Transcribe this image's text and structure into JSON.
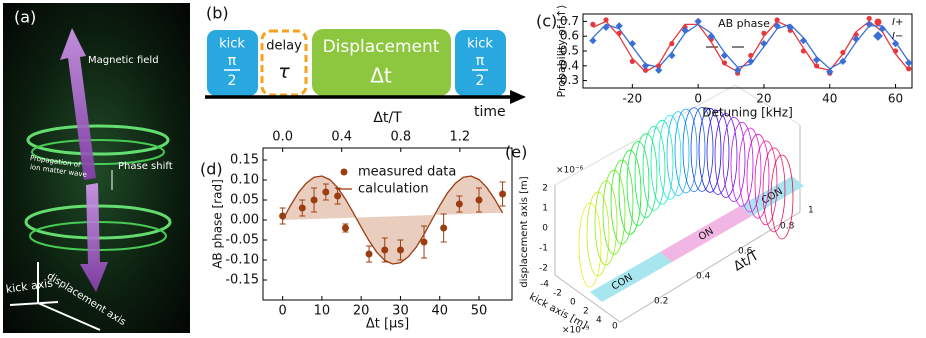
{
  "figure": {
    "panel_a": {
      "label": "(a)",
      "magnetic": "Magnetic field",
      "propagation_1": "Propagation of",
      "propagation_2": "ion matter wave",
      "phase_shift": "Phase shift",
      "kick_axis": "kick axis",
      "displacement_axis": "displacement axis"
    },
    "panel_b": {
      "label": "(b)",
      "blocks": [
        {
          "top": "kick",
          "num": "π",
          "den": "2"
        },
        {
          "top": "delay",
          "symbol": "τ"
        },
        {
          "top": "Displacement",
          "symbol": "Δt"
        },
        {
          "top": "kick",
          "num": "π",
          "den": "2"
        }
      ],
      "axis": "time"
    },
    "panel_e": {
      "label": "(e)",
      "z_label": "displacement axis [m]",
      "z_exp": "×10⁻⁶",
      "z_ticks": [
        "2",
        "1",
        "0",
        "-1",
        "-2"
      ],
      "x_label": "kick axis [m]",
      "x_exp": "×10⁻⁹",
      "x_ticks": [
        "-4",
        "-2",
        "0",
        "2",
        "4"
      ],
      "y_label": "Δt/T",
      "y_ticks": [
        "0",
        "0.2",
        "0.4",
        "0.6",
        "0.8",
        "1"
      ],
      "zones": [
        "CON",
        "ON",
        "CON"
      ]
    }
  },
  "chart_data": [
    {
      "type": "scatter",
      "title": "(c)",
      "xlabel": "Detuning [kHz]",
      "ylabel": "Probability of |↑⟩",
      "annotation": "AB phase",
      "xlim": [
        -35,
        65
      ],
      "xticks": [
        -20,
        0,
        20,
        40,
        60
      ],
      "ylim": [
        0.25,
        0.75
      ],
      "yticks": [
        0.3,
        0.4,
        0.5,
        0.6,
        0.7
      ],
      "x": [
        -32,
        -28,
        -24,
        -20,
        -16,
        -12,
        -8,
        -4,
        0,
        4,
        8,
        12,
        16,
        20,
        24,
        28,
        32,
        36,
        40,
        44,
        48,
        52,
        56,
        60,
        64
      ],
      "series": [
        {
          "name": "I+",
          "color": "#e8383d",
          "marker": "circle",
          "values": [
            0.68,
            0.71,
            0.62,
            0.43,
            0.37,
            0.4,
            0.55,
            0.66,
            0.7,
            0.58,
            0.42,
            0.35,
            0.47,
            0.62,
            0.71,
            0.64,
            0.5,
            0.4,
            0.35,
            0.49,
            0.61,
            0.72,
            0.65,
            0.5,
            0.38
          ]
        },
        {
          "name": "I−",
          "color": "#3a6fd8",
          "marker": "diamond",
          "values": [
            0.57,
            0.66,
            0.67,
            0.55,
            0.4,
            0.37,
            0.47,
            0.64,
            0.7,
            0.6,
            0.47,
            0.37,
            0.43,
            0.55,
            0.67,
            0.66,
            0.57,
            0.44,
            0.36,
            0.43,
            0.58,
            0.68,
            0.65,
            0.55,
            0.42
          ]
        },
        {
          "color": "#e8383d",
          "style": "line",
          "values": [
            0.66,
            0.7,
            0.6,
            0.45,
            0.36,
            0.41,
            0.56,
            0.68,
            0.68,
            0.56,
            0.41,
            0.36,
            0.45,
            0.6,
            0.7,
            0.66,
            0.52,
            0.39,
            0.37,
            0.48,
            0.63,
            0.7,
            0.63,
            0.48,
            0.37
          ]
        },
        {
          "color": "#3a6fd8",
          "style": "line",
          "values": [
            0.59,
            0.68,
            0.65,
            0.53,
            0.41,
            0.39,
            0.49,
            0.62,
            0.68,
            0.62,
            0.49,
            0.39,
            0.41,
            0.53,
            0.65,
            0.68,
            0.59,
            0.46,
            0.38,
            0.43,
            0.56,
            0.67,
            0.67,
            0.56,
            0.43
          ]
        }
      ]
    },
    {
      "type": "scatter",
      "title": "(d)",
      "xlabel": "Δt [μs]",
      "ylabel": "AB phase [rad]",
      "x2label": "Δt/T",
      "xlim": [
        -5,
        58.4
      ],
      "xticks": [
        0,
        10,
        20,
        30,
        40,
        50
      ],
      "x2lim": [
        -0.133,
        1.553
      ],
      "x2ticks": [
        {
          "value": 0,
          "label": "0.0"
        },
        0.4,
        0.8,
        1.2
      ],
      "ylim": [
        -0.2,
        0.18
      ],
      "yticks": [
        -0.15,
        {
          "value": -0.1,
          "label": "-0.10"
        },
        -0.05,
        {
          "value": 0,
          "label": "0.00"
        },
        0.05,
        {
          "value": 0.1,
          "label": "0.10"
        },
        0.15
      ],
      "series": [
        {
          "name": "measured data",
          "color": "#9c3d10",
          "marker": "circle",
          "x": [
            0,
            5,
            8,
            11,
            14,
            16,
            22,
            26,
            30,
            36,
            41,
            45,
            50,
            56
          ],
          "values": [
            0.01,
            0.03,
            0.05,
            0.07,
            0.06,
            -0.02,
            -0.085,
            -0.075,
            -0.075,
            -0.055,
            -0.02,
            0.04,
            0.05,
            0.065
          ],
          "errors": [
            0.02,
            0.02,
            0.03,
            0.02,
            0.02,
            0.01,
            0.02,
            0.03,
            0.025,
            0.04,
            0.035,
            0.02,
            0.03,
            0.03
          ]
        },
        {
          "name": "calculation",
          "color": "#9c3d10",
          "style": "line",
          "fill": "#e3c2b0",
          "x": [
            0,
            2,
            4,
            6,
            8,
            10,
            12,
            14,
            16,
            18,
            20,
            22,
            24,
            26,
            28,
            30,
            32,
            34,
            36,
            38,
            40,
            42,
            44,
            46,
            48,
            50,
            52,
            54,
            56
          ],
          "values": [
            0,
            0.036,
            0.068,
            0.092,
            0.107,
            0.11,
            0.101,
            0.081,
            0.052,
            0.018,
            -0.018,
            -0.052,
            -0.081,
            -0.101,
            -0.11,
            -0.107,
            -0.092,
            -0.068,
            -0.036,
            0,
            0.036,
            0.068,
            0.092,
            0.107,
            0.11,
            0.101,
            0.081,
            0.052,
            0.018
          ]
        }
      ]
    }
  ]
}
